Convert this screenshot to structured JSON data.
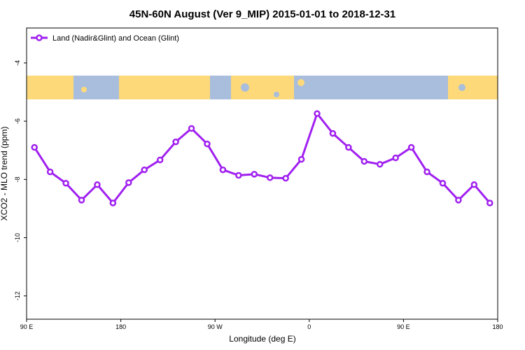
{
  "chart_data": {
    "type": "line",
    "title": "45N-60N August (Ver 9_MIP)   2015-01-01 to 2018-12-31",
    "x_label": "Longitude (deg E)",
    "y_label": "XCO2 - MLO trend (ppm)",
    "x": [
      97.5,
      112.5,
      127.5,
      142.5,
      157.5,
      172.5,
      187.5,
      202.5,
      217.5,
      232.5,
      247.5,
      262.5,
      277.5,
      292.5,
      307.5,
      322.5,
      337.5,
      352.5,
      367.5,
      382.5,
      397.5,
      412.5,
      427.5,
      442.5,
      457.5,
      472.5,
      487.5,
      502.5,
      517.5,
      532.5
    ],
    "series": [
      {
        "name": "Land (Nadir&Glint) and Ocean (Glint)",
        "color": "#a020f0",
        "values": [
          -6.9,
          -7.74,
          -8.13,
          -8.71,
          -8.18,
          -8.81,
          -8.11,
          -7.67,
          -7.33,
          -6.71,
          -6.25,
          -6.78,
          -7.67,
          -7.86,
          -7.82,
          -7.94,
          -7.96,
          -7.31,
          -5.74,
          -6.42,
          -6.9,
          -7.38,
          -7.48,
          -7.26,
          -6.9,
          -7.74,
          -8.13,
          -8.71,
          -8.18,
          -8.81
        ]
      }
    ],
    "xlim": [
      90,
      540
    ],
    "xticks": [
      {
        "value": 90,
        "label": "90 E"
      },
      180,
      {
        "value": 270,
        "label": "90 W"
      },
      {
        "value": 360,
        "label": "0"
      },
      {
        "value": 450,
        "label": "90 E"
      },
      {
        "value": 540,
        "label": "180"
      }
    ],
    "ylim": [
      -12.8,
      -2.8
    ],
    "yticks": [
      -4,
      -6,
      -8,
      -10,
      -12
    ],
    "legend": "top-left"
  }
}
